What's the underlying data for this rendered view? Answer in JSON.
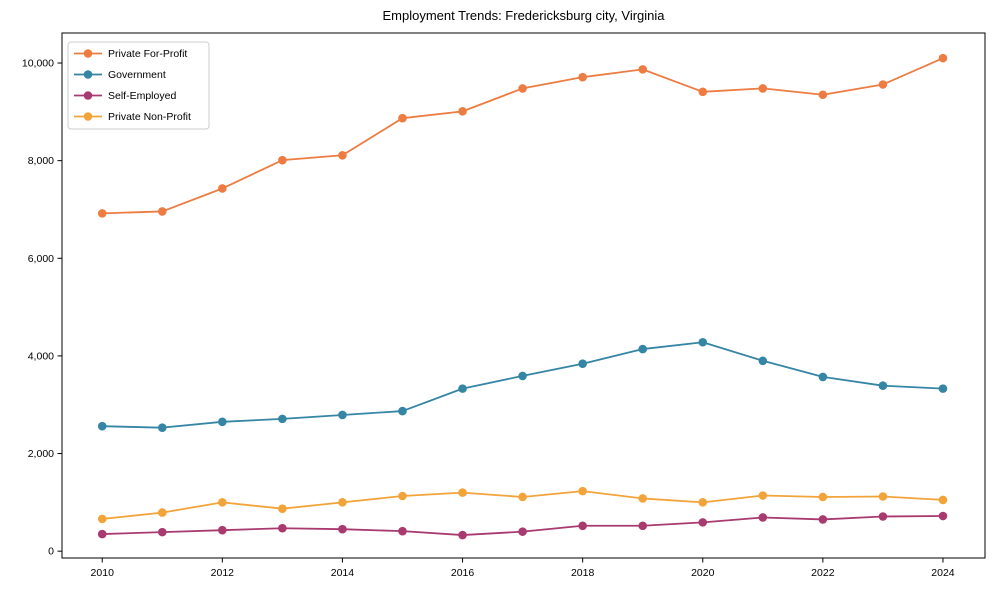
{
  "title": "Employment Trends: Fredericksburg city, Virginia",
  "chart_data": {
    "type": "line",
    "title": "Employment Trends: Fredericksburg city, Virginia",
    "xlabel": "",
    "ylabel": "",
    "x": [
      2010,
      2011,
      2012,
      2013,
      2014,
      2015,
      2016,
      2017,
      2018,
      2019,
      2020,
      2021,
      2022,
      2023,
      2024
    ],
    "series": [
      {
        "name": "Private For-Profit",
        "color": "#ec7c42",
        "values": [
          6920,
          6960,
          7430,
          8010,
          8110,
          8870,
          9010,
          9480,
          9710,
          9870,
          9410,
          9480,
          9350,
          9560,
          10100
        ]
      },
      {
        "name": "Government",
        "color": "#3585a5",
        "values": [
          2560,
          2530,
          2650,
          2710,
          2790,
          2870,
          3330,
          3590,
          3840,
          4140,
          4280,
          3900,
          3570,
          3390,
          3330
        ]
      },
      {
        "name": "Self-Employed",
        "color": "#a83a70",
        "values": [
          350,
          390,
          430,
          470,
          450,
          410,
          330,
          400,
          520,
          520,
          590,
          690,
          650,
          710,
          720
        ]
      },
      {
        "name": "Private Non-Profit",
        "color": "#f2a43a",
        "values": [
          660,
          790,
          1000,
          870,
          1000,
          1130,
          1200,
          1110,
          1230,
          1080,
          1000,
          1140,
          1110,
          1120,
          1050
        ]
      }
    ],
    "xticks": [
      2010,
      2012,
      2014,
      2016,
      2018,
      2020,
      2022,
      2024
    ],
    "xtick_labels": [
      "2010",
      "2012",
      "2014",
      "2016",
      "2018",
      "2020",
      "2022",
      "2024"
    ],
    "yticks": [
      0,
      2000,
      4000,
      6000,
      8000,
      10000
    ],
    "ytick_labels": [
      "0",
      "2,000",
      "4,000",
      "6,000",
      "8,000",
      "10,000"
    ],
    "xlim": [
      2009.33,
      2024.7
    ],
    "ylim": [
      -140,
      10615
    ],
    "grid": false,
    "legend_position": "upper-left",
    "legend_entries": [
      "Private For-Profit",
      "Government",
      "Self-Employed",
      "Private Non-Profit"
    ],
    "axis_color": "#000000",
    "background_color": "#ffffff"
  }
}
